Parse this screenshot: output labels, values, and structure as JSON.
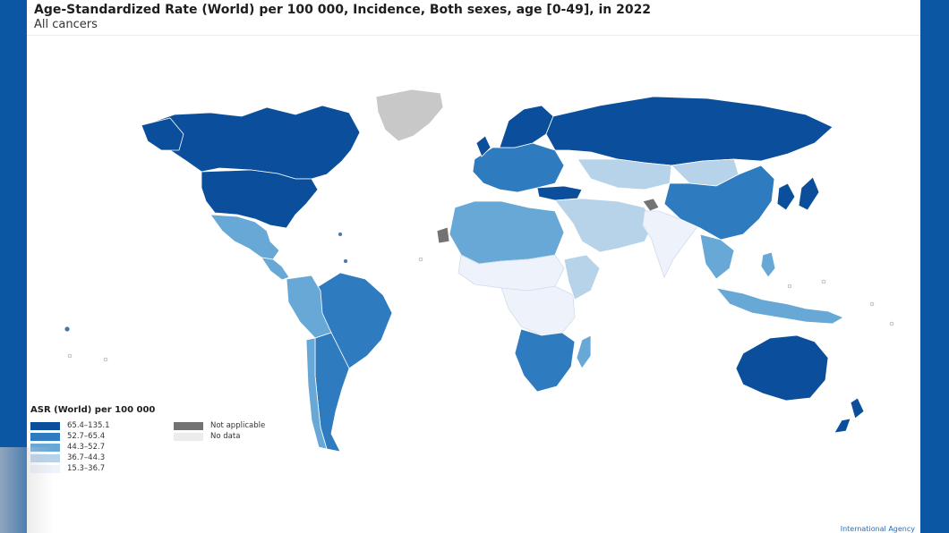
{
  "title": "Age-Standardized Rate (World) per 100 000, Incidence, Both sexes, age [0-49], in 2022",
  "subtitle": "All cancers",
  "legend": {
    "title": "ASR (World) per 100 000",
    "classes": [
      {
        "label": "65.4–135.1",
        "color": "#0b4f9c"
      },
      {
        "label": "52.7–65.4",
        "color": "#2f7bbf"
      },
      {
        "label": "44.3–52.7",
        "color": "#68a8d6"
      },
      {
        "label": "36.7–44.3",
        "color": "#b7d3ea"
      },
      {
        "label": "15.3–36.7",
        "color": "#eef3fb"
      }
    ],
    "special": [
      {
        "label": "Not applicable",
        "color": "#737373"
      },
      {
        "label": "No data",
        "color": "#ececec"
      }
    ]
  },
  "footer": {
    "org": "International Agency"
  },
  "colors": {
    "frame": "#0b57a4",
    "greenland": "#c8c8c8"
  }
}
